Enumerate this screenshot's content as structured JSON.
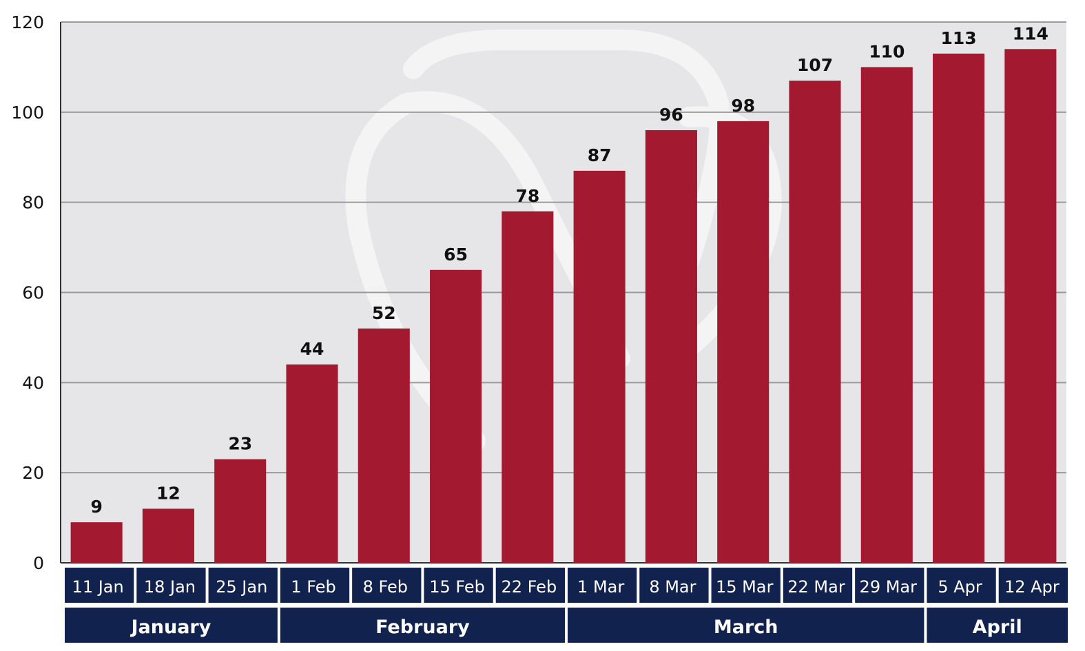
{
  "chart_data": {
    "type": "bar",
    "categories": [
      "11 Jan",
      "18 Jan",
      "25 Jan",
      "1 Feb",
      "8 Feb",
      "15 Feb",
      "22 Feb",
      "1 Mar",
      "8 Mar",
      "15 Mar",
      "22 Mar",
      "29 Mar",
      "5 Apr",
      "12 Apr"
    ],
    "values": [
      9,
      12,
      23,
      44,
      52,
      65,
      78,
      87,
      96,
      98,
      107,
      110,
      113,
      114
    ],
    "groups": [
      {
        "label": "January",
        "count": 3
      },
      {
        "label": "February",
        "count": 4
      },
      {
        "label": "March",
        "count": 5
      },
      {
        "label": "April",
        "count": 2
      }
    ],
    "yticks": [
      0,
      20,
      40,
      60,
      80,
      100,
      120
    ],
    "ylim": [
      0,
      120
    ],
    "title": "",
    "xlabel": "",
    "ylabel": "",
    "grid": true,
    "data_labels": true
  },
  "colors": {
    "bar": "#A31A30",
    "plot_background": "#E6E6E8",
    "category_band": "#12224E",
    "grid": "#9A9A9A",
    "watermark": "#F4F4F4"
  }
}
